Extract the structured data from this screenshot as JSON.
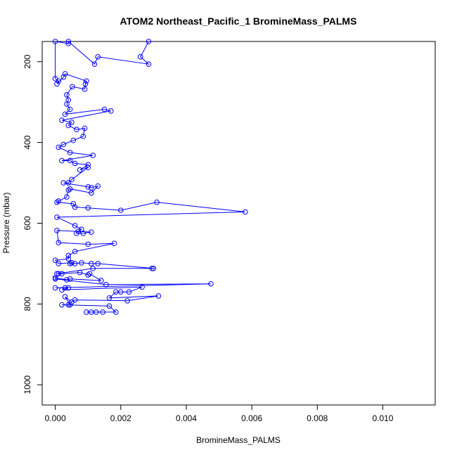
{
  "chart_data": {
    "type": "scatter",
    "style": "points connected by lines",
    "title": "ATOM2 Northeast_Pacific_1 BromineMass_PALMS",
    "xlabel": "BromineMass_PALMS",
    "ylabel": "Pressure (mbar)",
    "xlim": [
      -0.0004,
      0.0116
    ],
    "ylim": [
      1050,
      150
    ],
    "y_axis_inverted": true,
    "x_ticks": [
      0.0,
      0.002,
      0.004,
      0.006,
      0.008,
      0.01
    ],
    "x_tick_labels": [
      "0.000",
      "0.002",
      "0.004",
      "0.006",
      "0.008",
      "0.010"
    ],
    "y_ticks": [
      200,
      400,
      600,
      800,
      1000
    ],
    "y_tick_labels": [
      "200",
      "400",
      "600",
      "800",
      "1000"
    ],
    "grid": false,
    "color": "#0000ff",
    "points": [
      [
        0.00285,
        150
      ],
      [
        0.0026,
        188
      ],
      [
        0.00285,
        206
      ],
      [
        0.0013,
        188
      ],
      [
        0.0012,
        206
      ],
      [
        0.0004,
        150
      ],
      [
        0.0004,
        155
      ],
      [
        0.0,
        150
      ],
      [
        0.0,
        242
      ],
      [
        0.0001,
        248
      ],
      [
        5e-05,
        255
      ],
      [
        0.00025,
        238
      ],
      [
        0.0003,
        230
      ],
      [
        0.00095,
        248
      ],
      [
        0.00092,
        255
      ],
      [
        0.0009,
        268
      ],
      [
        0.00052,
        262
      ],
      [
        0.00035,
        282
      ],
      [
        0.0004,
        295
      ],
      [
        0.00035,
        305
      ],
      [
        0.00045,
        318
      ],
      [
        0.0003,
        330
      ],
      [
        0.0015,
        318
      ],
      [
        0.0017,
        322
      ],
      [
        0.0002,
        345
      ],
      [
        0.0005,
        350
      ],
      [
        0.0004,
        358
      ],
      [
        0.00065,
        368
      ],
      [
        0.0009,
        365
      ],
      [
        0.00085,
        385
      ],
      [
        0.00055,
        395
      ],
      [
        0.00025,
        405
      ],
      [
        0.0001,
        412
      ],
      [
        0.00045,
        425
      ],
      [
        0.00115,
        432
      ],
      [
        0.0002,
        445
      ],
      [
        0.00045,
        445
      ],
      [
        0.0006,
        452
      ],
      [
        0.001,
        455
      ],
      [
        0.00075,
        468
      ],
      [
        0.001,
        462
      ],
      [
        0.0005,
        492
      ],
      [
        0.0004,
        500
      ],
      [
        0.00025,
        500
      ],
      [
        0.001,
        510
      ],
      [
        0.0011,
        512
      ],
      [
        0.0013,
        508
      ],
      [
        0.0011,
        525
      ],
      [
        0.00045,
        515
      ],
      [
        0.0004,
        518
      ],
      [
        0.00035,
        535
      ],
      [
        0.0001,
        545
      ],
      [
        5e-05,
        548
      ],
      [
        0.00055,
        552
      ],
      [
        0.0006,
        560
      ],
      [
        0.001,
        562
      ],
      [
        0.002,
        568
      ],
      [
        0.0031,
        548
      ],
      [
        0.0058,
        572
      ],
      [
        5e-05,
        585
      ],
      [
        0.0006,
        606
      ],
      [
        0.0008,
        615
      ],
      [
        0.0007,
        620
      ],
      [
        0.00065,
        625
      ],
      [
        0.00085,
        625
      ],
      [
        0.0011,
        622
      ],
      [
        5e-05,
        618
      ],
      [
        0.0001,
        648
      ],
      [
        0.001,
        652
      ],
      [
        0.0018,
        650
      ],
      [
        0.0006,
        670
      ],
      [
        0.0004,
        680
      ],
      [
        0.0004,
        688
      ],
      [
        0.0,
        692
      ],
      [
        0.0001,
        700
      ],
      [
        0.0005,
        698
      ],
      [
        0.00045,
        700
      ],
      [
        0.0006,
        700
      ],
      [
        0.0008,
        698
      ],
      [
        0.0011,
        700
      ],
      [
        0.0013,
        700
      ],
      [
        0.003,
        712
      ],
      [
        0.00295,
        712
      ],
      [
        0.00115,
        712
      ],
      [
        5e-05,
        725
      ],
      [
        0.0001,
        725
      ],
      [
        0.0002,
        725
      ],
      [
        0.00075,
        722
      ],
      [
        0.001,
        728
      ],
      [
        0.00105,
        725
      ],
      [
        0.0014,
        742
      ],
      [
        0.00045,
        738
      ],
      [
        0.00035,
        740
      ],
      [
        0.0,
        735
      ],
      [
        0.0,
        738
      ],
      [
        0.00155,
        752
      ],
      [
        0.00475,
        750
      ],
      [
        0.0,
        760
      ],
      [
        0.0003,
        760
      ],
      [
        0.0004,
        760
      ],
      [
        0.0002,
        765
      ],
      [
        0.00265,
        758
      ],
      [
        0.00225,
        770
      ],
      [
        0.002,
        770
      ],
      [
        0.00185,
        770
      ],
      [
        0.00165,
        785
      ],
      [
        0.00315,
        780
      ],
      [
        0.0022,
        792
      ],
      [
        0.0006,
        790
      ],
      [
        0.0005,
        795
      ],
      [
        0.0003,
        782
      ],
      [
        0.00045,
        802
      ],
      [
        0.0004,
        802
      ],
      [
        0.0002,
        802
      ],
      [
        0.00165,
        805
      ],
      [
        0.00185,
        820
      ],
      [
        0.00145,
        820
      ],
      [
        0.00125,
        820
      ],
      [
        0.0011,
        820
      ],
      [
        0.00095,
        820
      ]
    ]
  }
}
